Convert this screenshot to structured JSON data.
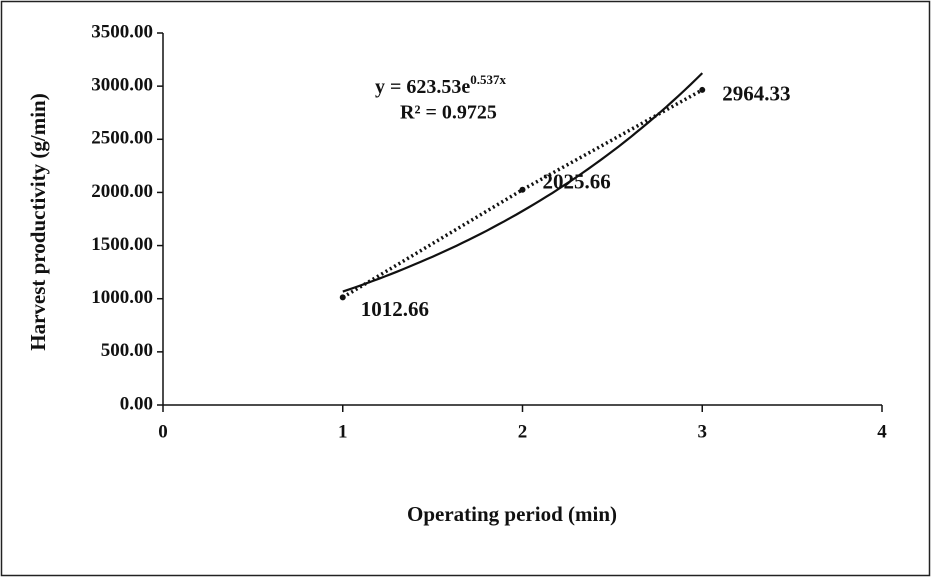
{
  "chart_data": {
    "type": "line",
    "x_label": "Operating period (min)",
    "y_label": "Harvest productivity (g/min)",
    "x": [
      1,
      2,
      3
    ],
    "values": [
      1012.66,
      2025.66,
      2964.33
    ],
    "color": "#111111",
    "xlim": [
      0,
      4
    ],
    "xticks": [
      0,
      1,
      2,
      3,
      4
    ],
    "ylim": [
      0,
      3500
    ],
    "yticks": [
      {
        "value": 0,
        "label": "0.00"
      },
      {
        "value": 500,
        "label": "500.00"
      },
      {
        "value": 1000,
        "label": "1000.00"
      },
      {
        "value": 1500,
        "label": "1500.00"
      },
      {
        "value": 2000,
        "label": "2000.00"
      },
      {
        "value": 2500,
        "label": "2500.00"
      },
      {
        "value": 3000,
        "label": "3000.00"
      },
      {
        "value": 3500,
        "label": "3500.00"
      }
    ],
    "trendline": {
      "a": 623.53,
      "b": 0.537
    },
    "equation": {
      "base": "y = 623.53e",
      "exponent": "0.537x"
    },
    "r_squared": "R² = 0.9725"
  }
}
